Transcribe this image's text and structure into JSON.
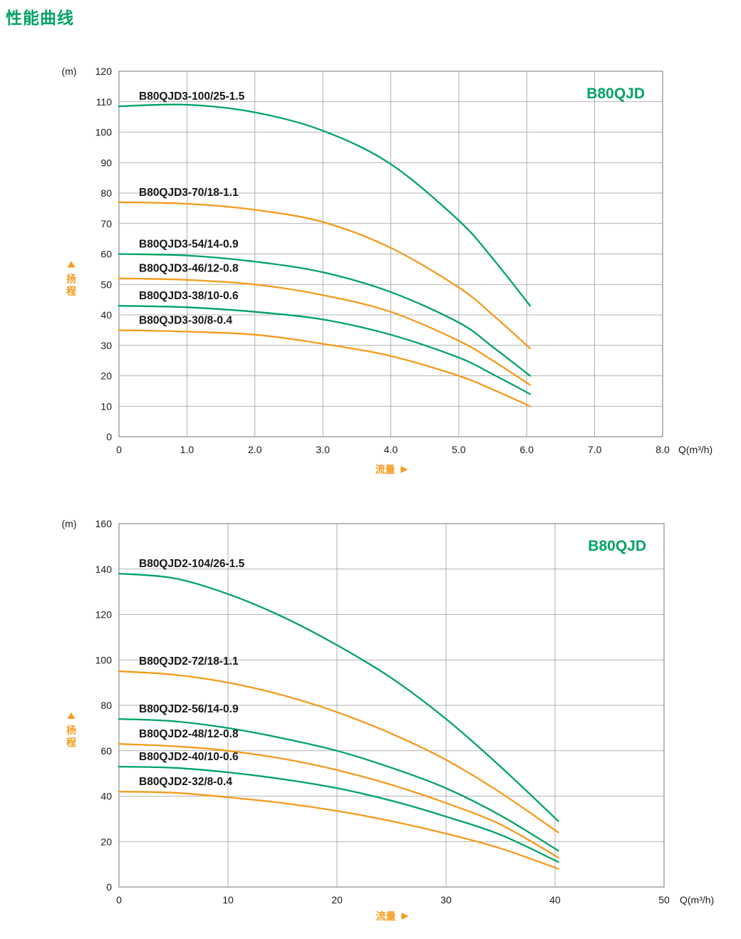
{
  "page_title": "性能曲线",
  "colors": {
    "green": "#00a364",
    "orange": "#f59a1d",
    "grid": "#9b9b9b",
    "frame": "#8c8c8c",
    "text": "#1b1b1b"
  },
  "charts": [
    {
      "brand": "B80QJD",
      "y_unit": "(m)",
      "y_axis_title": "扬程",
      "x_axis_title": "流量",
      "x_unit": "Q(m³/h)",
      "chart_data": {
        "type": "line",
        "xlim": [
          0,
          8
        ],
        "ylim": [
          0,
          120
        ],
        "grid": true,
        "xlabel": "流量 Q(m³/h)",
        "ylabel": "扬程 (m)",
        "x_ticks": {
          "values": [
            0,
            1,
            2,
            3,
            4,
            5,
            6,
            7,
            8
          ],
          "labels": [
            "0",
            "1.0",
            "2.0",
            "3.0",
            "4.0",
            "5.0",
            "6.0",
            "7.0",
            "8.0"
          ]
        },
        "y_ticks": {
          "values": [
            0,
            10,
            20,
            30,
            40,
            50,
            60,
            70,
            80,
            90,
            100,
            110,
            120
          ],
          "labels": [
            "0",
            "10",
            "20",
            "30",
            "40",
            "50",
            "60",
            "70",
            "80",
            "90",
            "100",
            "110",
            "120"
          ]
        },
        "series": [
          {
            "name": "B80QJD3-100/25-1.5",
            "color": "green",
            "x": [
              0,
              1,
              2,
              3,
              4,
              5,
              5.5,
              6.05
            ],
            "y": [
              108.5,
              109,
              106.5,
              100.5,
              89.5,
              71,
              58.5,
              43
            ]
          },
          {
            "name": "B80QJD3-70/18-1.1",
            "color": "orange",
            "x": [
              0,
              1,
              2,
              3,
              4,
              5,
              5.5,
              6.05
            ],
            "y": [
              77,
              76.5,
              74.5,
              70.5,
              62,
              49,
              40,
              29
            ]
          },
          {
            "name": "B80QJD3-54/14-0.9",
            "color": "green",
            "x": [
              0,
              1,
              2,
              3,
              4,
              5,
              5.5,
              6.05
            ],
            "y": [
              60,
              59.5,
              57.5,
              54,
              47.5,
              37.5,
              29.5,
              20
            ]
          },
          {
            "name": "B80QJD3-46/12-0.8",
            "color": "orange",
            "x": [
              0,
              1,
              2,
              3,
              4,
              5,
              5.5,
              6.05
            ],
            "y": [
              52,
              51.5,
              50,
              46.5,
              41,
              31.5,
              25,
              17
            ]
          },
          {
            "name": "B80QJD3-38/10-0.6",
            "color": "green",
            "x": [
              0,
              1,
              2,
              3,
              4,
              5,
              5.5,
              6.05
            ],
            "y": [
              43,
              42.5,
              41,
              38.5,
              33.5,
              26,
              20.5,
              14
            ]
          },
          {
            "name": "B80QJD3-30/8-0.4",
            "color": "orange",
            "x": [
              0,
              1,
              2,
              3,
              4,
              5,
              5.5,
              6.05
            ],
            "y": [
              35,
              34.5,
              33.5,
              30.5,
              26.5,
              20,
              15.5,
              10
            ]
          }
        ]
      }
    },
    {
      "brand": "B80QJD",
      "y_unit": "(m)",
      "y_axis_title": "扬程",
      "x_axis_title": "流量",
      "x_unit": "Q(m³/h)",
      "chart_data": {
        "type": "line",
        "xlim": [
          0,
          50
        ],
        "ylim": [
          0,
          160
        ],
        "grid": true,
        "xlabel": "流量 Q(m³/h)",
        "ylabel": "扬程 (m)",
        "x_ticks": {
          "values": [
            0,
            10,
            20,
            30,
            40,
            50
          ],
          "labels": [
            "0",
            "10",
            "20",
            "30",
            "40",
            "50"
          ]
        },
        "y_ticks": {
          "values": [
            0,
            20,
            40,
            60,
            80,
            100,
            120,
            140,
            160
          ],
          "labels": [
            "0",
            "20",
            "40",
            "60",
            "80",
            "100",
            "120",
            "140",
            "160"
          ]
        },
        "series": [
          {
            "name": "B80QJD2-104/26-1.5",
            "color": "green",
            "x": [
              0,
              5,
              10,
              15,
              20,
              25,
              30,
              35,
              40.3
            ],
            "y": [
              138,
              136,
              129,
              119,
              106.5,
              92,
              74,
              53,
              29
            ]
          },
          {
            "name": "B80QJD2-72/18-1.1",
            "color": "orange",
            "x": [
              0,
              5,
              10,
              15,
              20,
              25,
              30,
              35,
              40.3
            ],
            "y": [
              95,
              93.5,
              90,
              84.5,
              77,
              67.5,
              56,
              41.5,
              24
            ]
          },
          {
            "name": "B80QJD2-56/14-0.9",
            "color": "green",
            "x": [
              0,
              5,
              10,
              15,
              20,
              25,
              30,
              35,
              40.3
            ],
            "y": [
              74,
              73,
              70,
              65.5,
              60,
              52.5,
              43.5,
              31.5,
              16
            ]
          },
          {
            "name": "B80QJD2-48/12-0.8",
            "color": "orange",
            "x": [
              0,
              5,
              10,
              15,
              20,
              25,
              30,
              35,
              40.3
            ],
            "y": [
              63,
              62,
              60,
              56.5,
              51.5,
              45,
              37,
              27.5,
              13
            ]
          },
          {
            "name": "B80QJD2-40/10-0.6",
            "color": "green",
            "x": [
              0,
              5,
              10,
              15,
              20,
              25,
              30,
              35,
              40.3
            ],
            "y": [
              53,
              52.5,
              50.5,
              47.5,
              43.5,
              38,
              31,
              23,
              11
            ]
          },
          {
            "name": "B80QJD2-32/8-0.4",
            "color": "orange",
            "x": [
              0,
              5,
              10,
              15,
              20,
              25,
              30,
              35,
              40.3
            ],
            "y": [
              42,
              41.5,
              39.5,
              37,
              33.5,
              29,
              23.5,
              17,
              8
            ]
          }
        ]
      }
    }
  ]
}
